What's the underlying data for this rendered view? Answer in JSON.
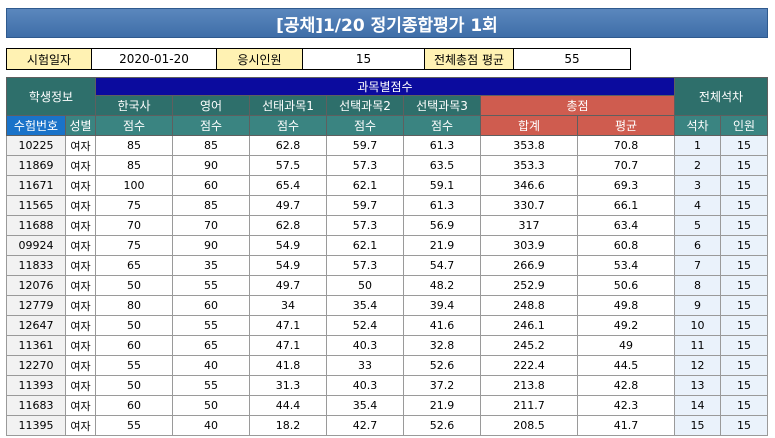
{
  "title": "[공채]1/20 정기종합평가 1회",
  "info": {
    "exam_date_label": "시험일자",
    "exam_date": "2020-01-20",
    "applicants_label": "응시인원",
    "applicants": "15",
    "avg_label": "전체총점 평균",
    "avg": "55"
  },
  "headers": {
    "student_info": "학생정보",
    "subject_scores": "과목별점수",
    "overall_rank": "전체석차",
    "korean_history": "한국사",
    "english": "영어",
    "elective1": "선태과목1",
    "elective2": "선택과목2",
    "elective3": "선택과목3",
    "total": "총점",
    "exam_no": "수험번호",
    "gender": "성별",
    "score": "점수",
    "sum": "합계",
    "average": "평균",
    "rank": "석차",
    "count": "인원"
  },
  "rows": [
    [
      "10225",
      "여자",
      "85",
      "85",
      "62.8",
      "59.7",
      "61.3",
      "353.8",
      "70.8",
      "1",
      "15"
    ],
    [
      "11869",
      "여자",
      "85",
      "90",
      "57.5",
      "57.3",
      "63.5",
      "353.3",
      "70.7",
      "2",
      "15"
    ],
    [
      "11671",
      "여자",
      "100",
      "60",
      "65.4",
      "62.1",
      "59.1",
      "346.6",
      "69.3",
      "3",
      "15"
    ],
    [
      "11565",
      "여자",
      "75",
      "85",
      "49.7",
      "59.7",
      "61.3",
      "330.7",
      "66.1",
      "4",
      "15"
    ],
    [
      "11688",
      "여자",
      "70",
      "70",
      "62.8",
      "57.3",
      "56.9",
      "317",
      "63.4",
      "5",
      "15"
    ],
    [
      "09924",
      "여자",
      "75",
      "90",
      "54.9",
      "62.1",
      "21.9",
      "303.9",
      "60.8",
      "6",
      "15"
    ],
    [
      "11833",
      "여자",
      "65",
      "35",
      "54.9",
      "57.3",
      "54.7",
      "266.9",
      "53.4",
      "7",
      "15"
    ],
    [
      "12076",
      "여자",
      "50",
      "55",
      "49.7",
      "50",
      "48.2",
      "252.9",
      "50.6",
      "8",
      "15"
    ],
    [
      "12779",
      "여자",
      "80",
      "60",
      "34",
      "35.4",
      "39.4",
      "248.8",
      "49.8",
      "9",
      "15"
    ],
    [
      "12647",
      "여자",
      "50",
      "55",
      "47.1",
      "52.4",
      "41.6",
      "246.1",
      "49.2",
      "10",
      "15"
    ],
    [
      "11361",
      "여자",
      "60",
      "65",
      "47.1",
      "40.3",
      "32.8",
      "245.2",
      "49",
      "11",
      "15"
    ],
    [
      "12270",
      "여자",
      "55",
      "40",
      "41.8",
      "33",
      "52.6",
      "222.4",
      "44.5",
      "12",
      "15"
    ],
    [
      "11393",
      "여자",
      "50",
      "55",
      "31.3",
      "40.3",
      "37.2",
      "213.8",
      "42.8",
      "13",
      "15"
    ],
    [
      "11683",
      "여자",
      "60",
      "50",
      "44.4",
      "35.4",
      "21.9",
      "211.7",
      "42.3",
      "14",
      "15"
    ],
    [
      "11395",
      "여자",
      "55",
      "40",
      "18.2",
      "42.7",
      "52.6",
      "208.5",
      "41.7",
      "15",
      "15"
    ]
  ]
}
